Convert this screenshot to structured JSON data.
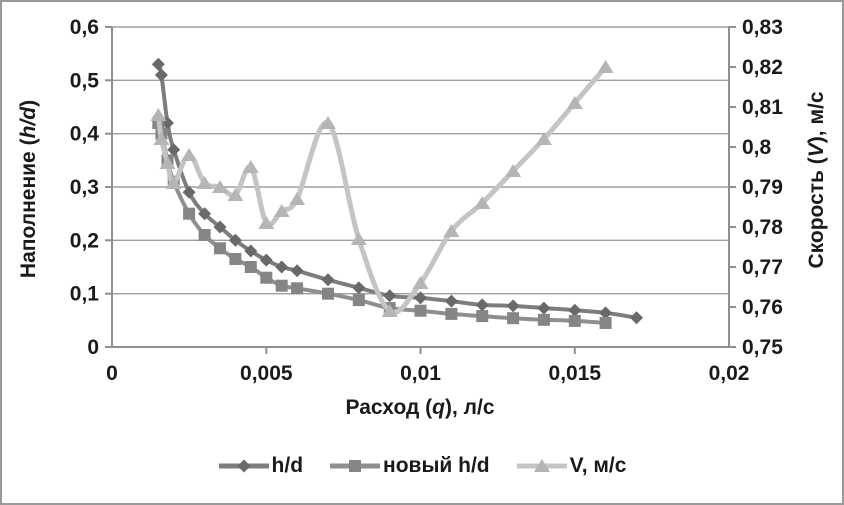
{
  "chart_data": {
    "type": "line",
    "title": "",
    "xlabel": "Расход (q), л/с",
    "ylabel_left": "Наполнение (h/d)",
    "ylabel_right": "Скорость (V), м/с",
    "x_title": {
      "pre": "Расход (",
      "var": "q",
      "post": "), л/с"
    },
    "y_left_title": {
      "pre": "Наполнение (",
      "var": "h/d",
      "post": ")"
    },
    "y_right_title": {
      "pre": "Скорость (",
      "var": "V",
      "post": "), м/с"
    },
    "xlim": [
      0,
      0.02
    ],
    "ylim_left": [
      0,
      0.6
    ],
    "ylim_right": [
      0.75,
      0.83
    ],
    "grid": "horizontal",
    "legend_position": "bottom",
    "x_ticks": [
      0,
      0.005,
      0.01,
      0.015,
      0.02
    ],
    "x_tick_labels": [
      "0",
      "0,005",
      "0,01",
      "0,015",
      "0,02"
    ],
    "y_left_ticks": [
      0,
      0.1,
      0.2,
      0.3,
      0.4,
      0.5,
      0.6
    ],
    "y_left_tick_labels": [
      "0",
      "0,1",
      "0,2",
      "0,3",
      "0,4",
      "0,5",
      "0,6"
    ],
    "y_right_ticks": [
      0.75,
      0.76,
      0.77,
      0.78,
      0.79,
      0.8,
      0.81,
      0.82,
      0.83
    ],
    "y_right_tick_labels": [
      "0,75",
      "0,76",
      "0,77",
      "0,78",
      "0,79",
      "0,8",
      "0,81",
      "0,82",
      "0,83"
    ],
    "series": [
      {
        "name": "h/d",
        "axis": "left",
        "marker": "diamond",
        "marker_color": "#696969",
        "line_color": "#7d7d7d",
        "x": [
          0.0015,
          0.0016,
          0.0018,
          0.002,
          0.0025,
          0.003,
          0.0035,
          0.004,
          0.0045,
          0.005,
          0.0055,
          0.006,
          0.007,
          0.008,
          0.009,
          0.01,
          0.011,
          0.012,
          0.013,
          0.014,
          0.015,
          0.016,
          0.017
        ],
        "y": [
          0.53,
          0.51,
          0.42,
          0.37,
          0.29,
          0.25,
          0.225,
          0.2,
          0.18,
          0.163,
          0.15,
          0.143,
          0.126,
          0.111,
          0.096,
          0.092,
          0.086,
          0.079,
          0.077,
          0.073,
          0.069,
          0.064,
          0.055
        ]
      },
      {
        "name": "новый h/d",
        "axis": "left",
        "marker": "square",
        "marker_color": "#858585",
        "line_color": "#8f8f8f",
        "x": [
          0.0015,
          0.0016,
          0.0018,
          0.002,
          0.0025,
          0.003,
          0.0035,
          0.004,
          0.0045,
          0.005,
          0.0055,
          0.006,
          0.007,
          0.008,
          0.009,
          0.01,
          0.011,
          0.012,
          0.013,
          0.014,
          0.015,
          0.016
        ],
        "y": [
          0.42,
          0.4,
          0.35,
          0.31,
          0.25,
          0.21,
          0.185,
          0.165,
          0.15,
          0.13,
          0.115,
          0.11,
          0.1,
          0.088,
          0.073,
          0.068,
          0.062,
          0.058,
          0.054,
          0.051,
          0.049,
          0.045
        ]
      },
      {
        "name": "V, м/с",
        "axis": "right",
        "marker": "triangle",
        "marker_color": "#b5b5b5",
        "line_color": "#c4c4c4",
        "x": [
          0.0015,
          0.0016,
          0.0018,
          0.002,
          0.0025,
          0.003,
          0.0035,
          0.004,
          0.0045,
          0.005,
          0.0055,
          0.006,
          0.007,
          0.008,
          0.009,
          0.01,
          0.011,
          0.012,
          0.013,
          0.014,
          0.015,
          0.016
        ],
        "y": [
          0.808,
          0.802,
          0.796,
          0.791,
          0.798,
          0.791,
          0.79,
          0.788,
          0.795,
          0.781,
          0.784,
          0.787,
          0.806,
          0.777,
          0.759,
          0.766,
          0.779,
          0.786,
          0.794,
          0.802,
          0.811,
          0.82
        ]
      }
    ],
    "colors": {
      "grid": "#9e9e9e",
      "axis": "#8f8f8f",
      "text": "#1a1a1a",
      "background": "#ffffff",
      "border": "#9a9a9a"
    }
  }
}
